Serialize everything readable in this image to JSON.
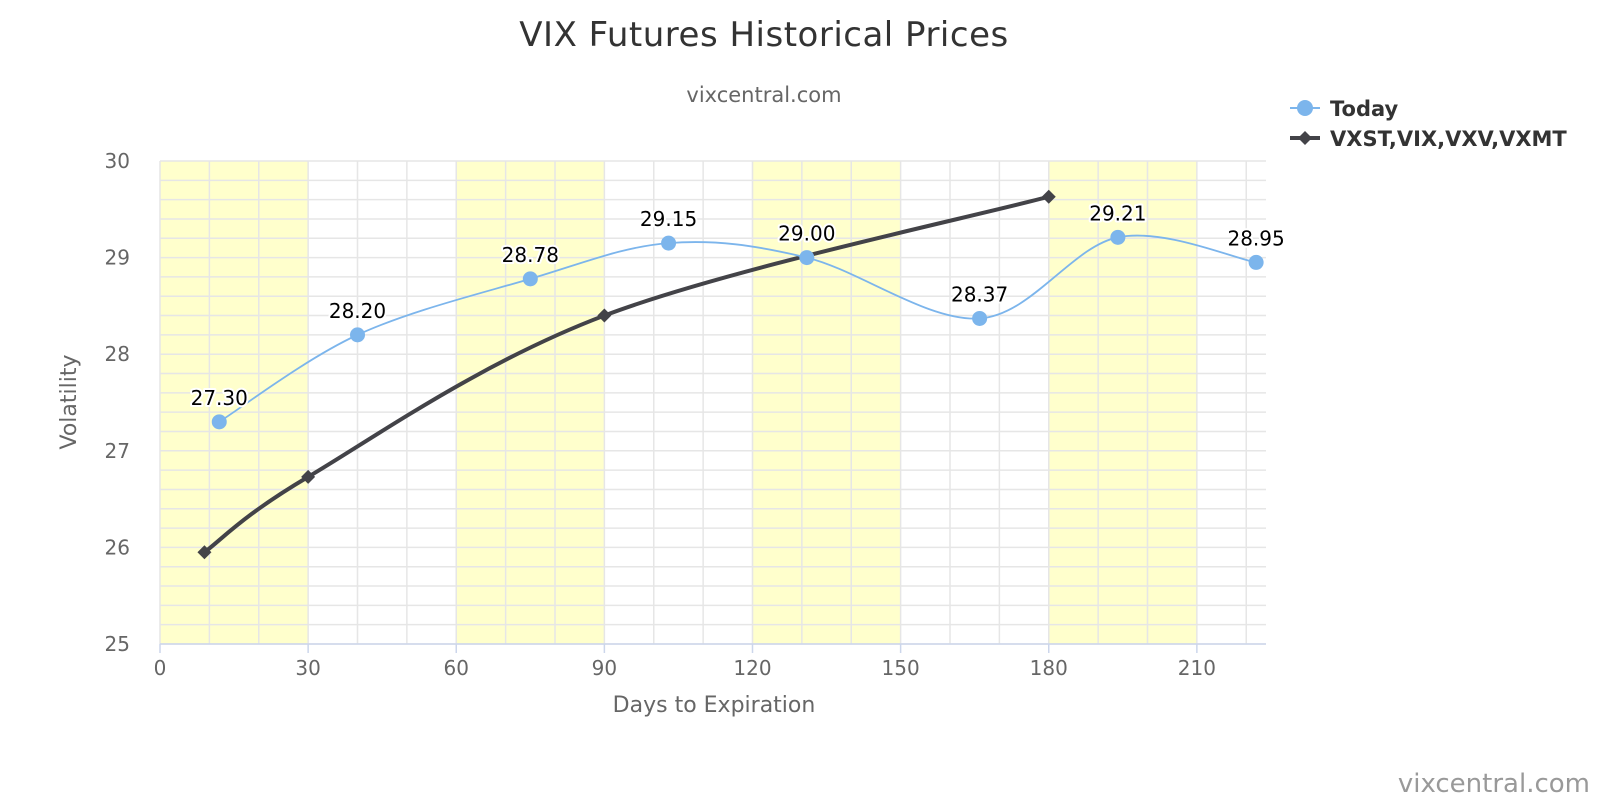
{
  "chart_data": {
    "type": "line",
    "title": "VIX Futures Historical Prices",
    "subtitle": "vixcentral.com",
    "credit": "vixcentral.com",
    "xlabel": "Days to Expiration",
    "ylabel": "Volatility",
    "xlim": [
      0,
      224
    ],
    "ylim": [
      25,
      30
    ],
    "x_ticks": [
      0,
      30,
      60,
      90,
      120,
      150,
      180,
      210
    ],
    "y_ticks": [
      25,
      26,
      27,
      28,
      29,
      30
    ],
    "grid": true,
    "legend_position": "top-right",
    "shaded_bands": [
      [
        0,
        30
      ],
      [
        60,
        90
      ],
      [
        120,
        150
      ],
      [
        180,
        210
      ]
    ],
    "band_color": "#ffffcc",
    "series": [
      {
        "name": "Today",
        "color": "#7cb5ec",
        "marker": "circle",
        "smooth": true,
        "show_labels": true,
        "points": [
          {
            "x": 12,
            "y": 27.3,
            "label": "27.30"
          },
          {
            "x": 40,
            "y": 28.2,
            "label": "28.20"
          },
          {
            "x": 75,
            "y": 28.78,
            "label": "28.78"
          },
          {
            "x": 103,
            "y": 29.15,
            "label": "29.15"
          },
          {
            "x": 131,
            "y": 29.0,
            "label": "29.00"
          },
          {
            "x": 166,
            "y": 28.37,
            "label": "28.37"
          },
          {
            "x": 194,
            "y": 29.21,
            "label": "29.21"
          },
          {
            "x": 222,
            "y": 28.95,
            "label": "28.95"
          }
        ]
      },
      {
        "name": "VXST,VIX,VXV,VXMT",
        "color": "#434348",
        "marker": "diamond",
        "smooth": true,
        "show_labels": false,
        "points": [
          {
            "x": 9,
            "y": 25.95
          },
          {
            "x": 30,
            "y": 26.73
          },
          {
            "x": 90,
            "y": 28.4
          },
          {
            "x": 180,
            "y": 29.63
          }
        ]
      }
    ]
  }
}
